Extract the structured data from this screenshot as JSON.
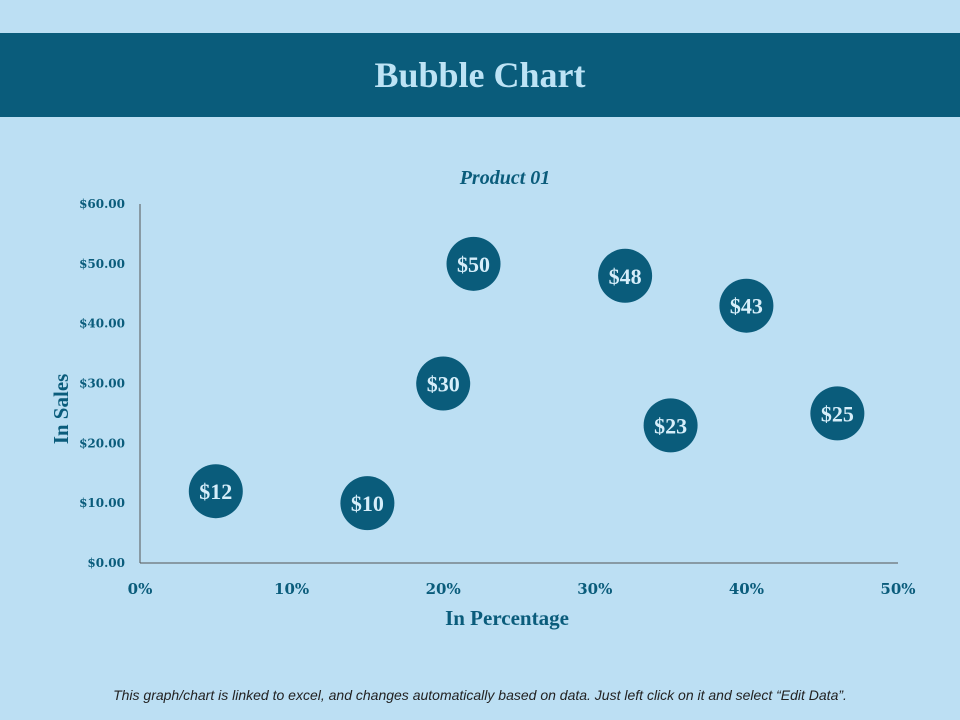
{
  "title": "Bubble Chart",
  "footer": "This graph/chart is linked to excel, and changes automatically based on data. Just left click on it and select “Edit Data”.",
  "colors": {
    "background": "#bcdff3",
    "accent": "#0a5c7b",
    "bubble_text": "#d6eefa"
  },
  "chart_data": {
    "type": "scatter",
    "subtype": "bubble",
    "title": "Product 01",
    "xlabel": "In Percentage",
    "ylabel": "In Sales",
    "xlim": [
      0,
      50
    ],
    "ylim": [
      0,
      60
    ],
    "x_ticks": [
      "0%",
      "10%",
      "20%",
      "30%",
      "40%",
      "50%"
    ],
    "y_ticks": [
      "$0.00",
      "$10.00",
      "$20.00",
      "$30.00",
      "$40.00",
      "$50.00",
      "$60.00"
    ],
    "grid": false,
    "series": [
      {
        "points": [
          {
            "x": 5,
            "y": 12,
            "label": "$12"
          },
          {
            "x": 15,
            "y": 10,
            "label": "$10"
          },
          {
            "x": 20,
            "y": 30,
            "label": "$30"
          },
          {
            "x": 22,
            "y": 50,
            "label": "$50"
          },
          {
            "x": 32,
            "y": 48,
            "label": "$48"
          },
          {
            "x": 35,
            "y": 23,
            "label": "$23"
          },
          {
            "x": 40,
            "y": 43,
            "label": "$43"
          },
          {
            "x": 46,
            "y": 25,
            "label": "$25"
          }
        ]
      }
    ]
  }
}
